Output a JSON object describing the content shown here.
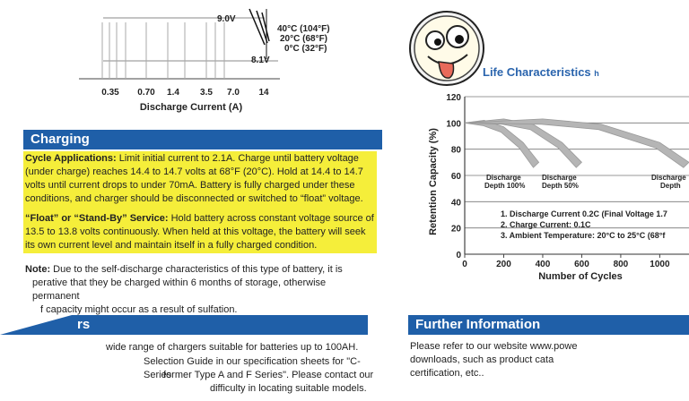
{
  "discharge_chart": {
    "voltage_top": "9.0V",
    "voltage_bottom": "8.1V",
    "temps": [
      "40°C (104°F)",
      "20°C  (68°F)",
      "0°C  (32°F)"
    ],
    "x_ticks": [
      "0.35",
      "0.70",
      "1.4",
      "3.5",
      "7.0",
      "14"
    ],
    "xlabel": "Discharge Current (A)"
  },
  "charging": {
    "title": "Charging",
    "cycle_label": "Cycle Applications:",
    "cycle_text": " Limit initial current to 2.1A. Charge until battery voltage (under charge) reaches 14.4  to 14.7 volts at 68°F (20°C). Hold at 14.4 to 14.7 volts until current drops to under 70mA. Battery is fully charged under these conditions, and charger should be disconnected or switched to “float” voltage.",
    "float_label": "“Float” or “Stand-By” Service:",
    "float_text": " Hold battery across constant voltage source of 13.5 to 13.8 volts continuously. When held at this voltage, the battery will seek its own current level and maintain itself in a fully charged condition.",
    "note_label": "Note:",
    "note_line1": " Due to the self-discharge characteristics of this type of battery, it is",
    "note_line2": "perative that they be charged within 6 months of storage, otherwise permanent",
    "note_line3": "f capacity might occur as a result of sulfation."
  },
  "chargers": {
    "title_partial": "rs",
    "line1": "wide range of chargers suitable for batteries up to 100AH.",
    "line2": "Selection Guide in our specification sheets for \"C-Series",
    "line3": "former Type A and F Series\". Please contact our",
    "line4": "difficulty in locating suitable models."
  },
  "life_chart": {
    "title": "Life Characteristics",
    "title_suffix": "h",
    "ylabel": "Retention Capacity (%)",
    "xlabel": "Number of Cycles",
    "y_ticks": [
      "120",
      "100",
      "80",
      "60",
      "40",
      "20",
      "0"
    ],
    "x_ticks": [
      "0",
      "200",
      "400",
      "600",
      "800",
      "1000"
    ],
    "labels": [
      {
        "line1": "Discharge",
        "line2": "Depth 100%"
      },
      {
        "line1": "Discharge",
        "line2": "Depth 50%"
      },
      {
        "line1": "Discharge",
        "line2": "Depth"
      }
    ],
    "notes": [
      "1. Discharge Current 0.2C (Final Voltage 1.7",
      "2. Charge Current: 0.1C",
      "3. Ambient Temperature: 20°C to 25°C (68°f"
    ]
  },
  "chart_data": {
    "type": "area",
    "title": "Life Characteristics",
    "xlabel": "Number of Cycles",
    "ylabel": "Retention Capacity (%)",
    "xlim": [
      0,
      1150
    ],
    "ylim": [
      0,
      120
    ],
    "series": [
      {
        "name": "Discharge Depth 100%",
        "x": [
          0,
          100,
          200,
          300,
          380
        ],
        "y": [
          100,
          102,
          97,
          85,
          70
        ]
      },
      {
        "name": "Discharge Depth 50%",
        "x": [
          0,
          200,
          350,
          500,
          600
        ],
        "y": [
          100,
          103,
          99,
          85,
          70
        ]
      },
      {
        "name": "Discharge Depth",
        "x": [
          0,
          400,
          700,
          1000,
          1150
        ],
        "y": [
          100,
          103,
          99,
          85,
          70
        ]
      }
    ]
  },
  "further": {
    "title": "Further Information",
    "line1": "Please refer to our website www.powe",
    "line2": "downloads, such as product cata",
    "line3": "certification, etc.."
  },
  "sticker": {
    "name": "silly-face"
  }
}
